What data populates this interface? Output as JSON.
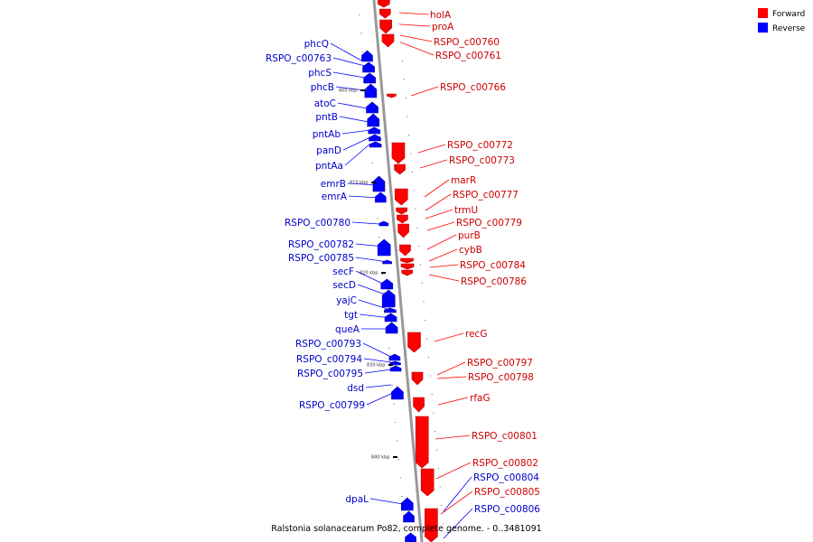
{
  "caption": "Ralstonia solanacearum Po82, complete genome. - 0..3481091",
  "legend": [
    {
      "label": "Forward",
      "color": "#ff0000"
    },
    {
      "label": "Reverse",
      "color": "#0000ff"
    }
  ],
  "colors": {
    "forward": "#ff0000",
    "forward_dark": "#b30000",
    "reverse": "#0000ff",
    "reverse_dark": "#0000a0",
    "backbone": "#999999"
  },
  "ticks": [
    "800 kbp",
    "810 kbp",
    "820 kbp",
    "830 kbp",
    "840 kbp"
  ],
  "forward_genes": [
    "holA",
    "proA",
    "RSPO_c00760",
    "RSPO_c00761",
    "RSPO_c00766",
    "RSPO_c00772",
    "RSPO_c00773",
    "marR",
    "RSPO_c00777",
    "trmU",
    "RSPO_c00779",
    "purB",
    "cybB",
    "RSPO_c00784",
    "RSPO_c00786",
    "recG",
    "RSPO_c00797",
    "RSPO_c00798",
    "rfaG",
    "RSPO_c00801",
    "RSPO_c00802",
    "RSPO_c00805"
  ],
  "reverse_genes": [
    "phcQ",
    "RSPO_c00763",
    "phcS",
    "phcB",
    "atoC",
    "pntB",
    "pntAb",
    "panD",
    "pntAa",
    "emrB",
    "emrA",
    "RSPO_c00780",
    "RSPO_c00782",
    "RSPO_c00785",
    "secF",
    "secD",
    "yajC",
    "tgt",
    "queA",
    "RSPO_c00793",
    "RSPO_c00794",
    "RSPO_c00795",
    "dsd",
    "RSPO_c00799",
    "RSPO_c00804",
    "RSPO_c00806",
    "dpaL"
  ]
}
